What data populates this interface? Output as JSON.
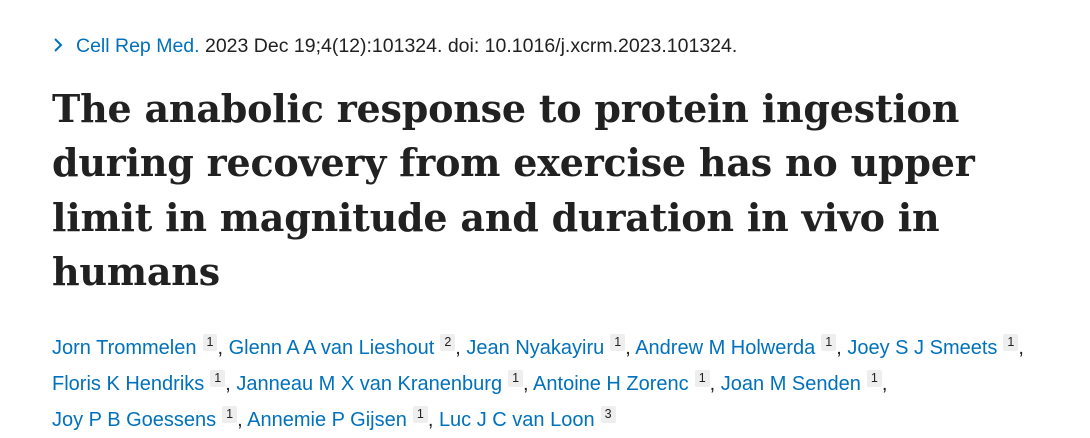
{
  "citation": {
    "journal": "Cell Rep Med.",
    "details": " 2023 Dec 19;4(12):101324. doi: 10.1016/j.xcrm.2023.101324."
  },
  "icons": {
    "citation_chevron": "chevron-right-icon"
  },
  "colors": {
    "link": "#0071bc",
    "text": "#212121",
    "affiliation_bg": "#eeeeee"
  },
  "title": "The anabolic response to protein ingestion during recovery from exercise has no upper limit in magnitude and duration in vivo in humans",
  "authors": [
    {
      "name": "Jorn Trommelen",
      "aff": "1"
    },
    {
      "name": "Glenn A A van Lieshout",
      "aff": "2"
    },
    {
      "name": "Jean Nyakayiru",
      "aff": "1"
    },
    {
      "name": "Andrew M Holwerda",
      "aff": "1"
    },
    {
      "name": "Joey S J Smeets",
      "aff": "1"
    },
    {
      "name": "Floris K Hendriks",
      "aff": "1"
    },
    {
      "name": "Janneau M X van Kranenburg",
      "aff": "1"
    },
    {
      "name": "Antoine H Zorenc",
      "aff": "1"
    },
    {
      "name": "Joan M Senden",
      "aff": "1"
    },
    {
      "name": "Joy P B Goessens",
      "aff": "1"
    },
    {
      "name": "Annemie P Gijsen",
      "aff": "1"
    },
    {
      "name": "Luc J C van Loon",
      "aff": "3"
    }
  ]
}
